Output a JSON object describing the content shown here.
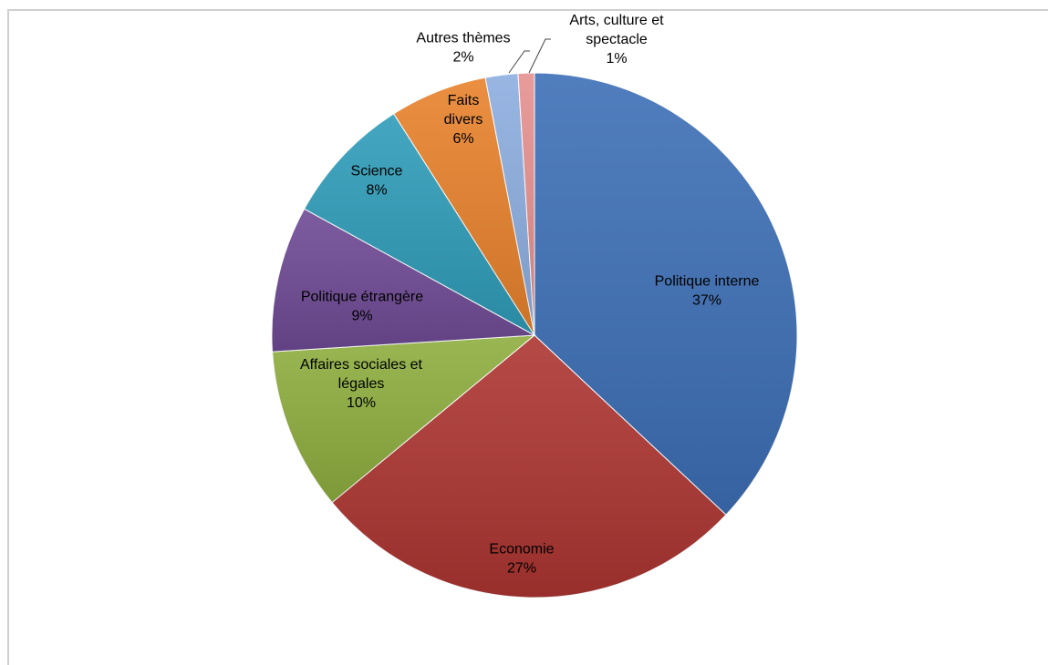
{
  "chart_data": {
    "type": "pie",
    "title": "",
    "slices": [
      {
        "label": "Politique interne",
        "value": 37,
        "pct_label": "37%",
        "color": "#3d6fb6"
      },
      {
        "label": "Economie",
        "value": 27,
        "pct_label": "27%",
        "color": "#ad3531"
      },
      {
        "label": "Affaires sociales et légales",
        "label_lines": [
          "Affaires sociales et",
          "légales"
        ],
        "value": 10,
        "pct_label": "10%",
        "color": "#8eae3f"
      },
      {
        "label": "Politique étrangère",
        "value": 9,
        "pct_label": "9%",
        "color": "#6e4a94"
      },
      {
        "label": "Science",
        "value": 8,
        "pct_label": "8%",
        "color": "#2f9cb9"
      },
      {
        "label": "Faits divers",
        "label_lines": [
          "Faits",
          "divers"
        ],
        "value": 6,
        "pct_label": "6%",
        "color": "#e8822c"
      },
      {
        "label": "Autres thèmes",
        "value": 2,
        "pct_label": "2%",
        "color": "#8daee0"
      },
      {
        "label": "Arts, culture et spectacle",
        "label_lines": [
          "Arts, culture et",
          "spectacle"
        ],
        "value": 1,
        "pct_label": "1%",
        "color": "#e59090"
      }
    ],
    "legend": "none",
    "start_angle": "12 o'clock",
    "direction": "clockwise"
  }
}
